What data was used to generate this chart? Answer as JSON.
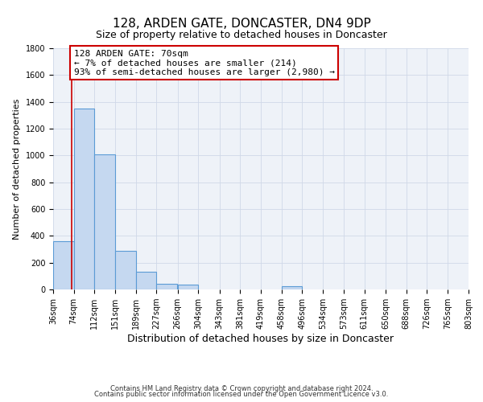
{
  "title": "128, ARDEN GATE, DONCASTER, DN4 9DP",
  "subtitle": "Size of property relative to detached houses in Doncaster",
  "xlabel": "Distribution of detached houses by size in Doncaster",
  "ylabel": "Number of detached properties",
  "bar_left_edges": [
    36,
    74,
    112,
    151,
    189,
    227,
    266,
    304,
    343,
    381,
    419,
    458,
    496,
    534,
    573,
    611,
    650,
    688,
    726,
    765
  ],
  "bar_heights": [
    360,
    1350,
    1010,
    290,
    130,
    40,
    35,
    0,
    0,
    0,
    0,
    25,
    0,
    0,
    0,
    0,
    0,
    0,
    0,
    0
  ],
  "bin_width": 38,
  "bar_color": "#c5d8f0",
  "bar_edge_color": "#5b9bd5",
  "vline_x": 70,
  "vline_color": "#cc0000",
  "annotation_text": "128 ARDEN GATE: 70sqm\n← 7% of detached houses are smaller (214)\n93% of semi-detached houses are larger (2,980) →",
  "annotation_box_color": "#ffffff",
  "annotation_box_edge": "#cc0000",
  "ylim": [
    0,
    1800
  ],
  "xlim": [
    36,
    803
  ],
  "yticks": [
    0,
    200,
    400,
    600,
    800,
    1000,
    1200,
    1400,
    1600,
    1800
  ],
  "xtick_labels": [
    "36sqm",
    "74sqm",
    "112sqm",
    "151sqm",
    "189sqm",
    "227sqm",
    "266sqm",
    "304sqm",
    "343sqm",
    "381sqm",
    "419sqm",
    "458sqm",
    "496sqm",
    "534sqm",
    "573sqm",
    "611sqm",
    "650sqm",
    "688sqm",
    "726sqm",
    "765sqm",
    "803sqm"
  ],
  "xtick_positions": [
    36,
    74,
    112,
    151,
    189,
    227,
    266,
    304,
    343,
    381,
    419,
    458,
    496,
    534,
    573,
    611,
    650,
    688,
    726,
    765,
    803
  ],
  "grid_color": "#d0d8e8",
  "background_color": "#eef2f8",
  "footer_line1": "Contains HM Land Registry data © Crown copyright and database right 2024.",
  "footer_line2": "Contains public sector information licensed under the Open Government Licence v3.0.",
  "title_fontsize": 11,
  "subtitle_fontsize": 9,
  "xlabel_fontsize": 9,
  "ylabel_fontsize": 8,
  "tick_fontsize": 7,
  "annotation_fontsize": 8,
  "footer_fontsize": 6
}
